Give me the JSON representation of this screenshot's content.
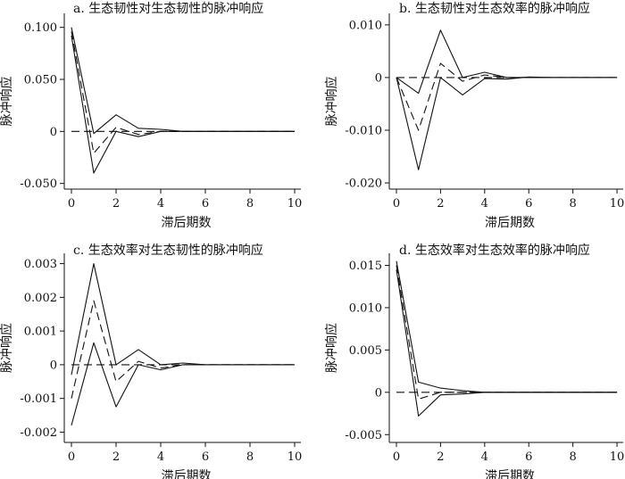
{
  "chart_data": [
    {
      "type": "line",
      "title": "a. 生态韧性对生态韧性的脉冲响应",
      "xlabel": "滞后期数",
      "ylabel": "脉冲响应",
      "xlim": [
        0,
        10.2
      ],
      "ylim": [
        -0.052,
        0.11
      ],
      "xticks": [
        0,
        2,
        4,
        6,
        8,
        10
      ],
      "xtick_labels": [
        "0",
        "2",
        "4",
        "6",
        "8",
        "10"
      ],
      "yticks": [
        0.1,
        0.05,
        0,
        -0.05
      ],
      "ytick_labels": [
        "0.100",
        "0.050",
        "0",
        "-0.050"
      ],
      "x": [
        0,
        1,
        2,
        3,
        4,
        5,
        6,
        7,
        8,
        9,
        10
      ],
      "series": [
        {
          "role": "upper",
          "style": "solid",
          "values": [
            0.1,
            -0.002,
            0.016,
            0.003,
            0.002,
            0.0,
            0.0,
            0.0,
            0.0,
            0.0,
            0.0
          ]
        },
        {
          "role": "center",
          "style": "dashed",
          "values": [
            0.096,
            -0.021,
            0.004,
            -0.003,
            0.0,
            0.0,
            0.0,
            0.0,
            0.0,
            0.0,
            0.0
          ]
        },
        {
          "role": "lower",
          "style": "solid",
          "values": [
            0.092,
            -0.04,
            0.0,
            -0.005,
            0.0,
            0.0,
            0.0,
            0.0,
            0.0,
            0.0,
            0.0
          ]
        },
        {
          "role": "zero",
          "style": "dashed",
          "values": [
            0,
            0,
            0,
            0,
            0,
            0,
            0,
            0,
            0,
            0,
            0
          ]
        }
      ]
    },
    {
      "type": "line",
      "title": "b. 生态韧性对生态效率的脉冲响应",
      "xlabel": "滞后期数",
      "ylabel": "脉冲响应",
      "xlim": [
        0,
        10.2
      ],
      "ylim": [
        -0.0205,
        0.0115
      ],
      "xticks": [
        0,
        2,
        4,
        6,
        8,
        10
      ],
      "xtick_labels": [
        "0",
        "2",
        "4",
        "6",
        "8",
        "10"
      ],
      "yticks": [
        0.01,
        0,
        -0.01,
        -0.02
      ],
      "ytick_labels": [
        "0.010",
        "0",
        "-0.010",
        "-0.020"
      ],
      "x": [
        0,
        1,
        2,
        3,
        4,
        5,
        6,
        7,
        8,
        9,
        10
      ],
      "series": [
        {
          "role": "upper",
          "style": "solid",
          "values": [
            0,
            -0.003,
            0.009,
            0.0,
            0.001,
            0.0,
            0.0,
            0.0,
            0.0,
            0.0,
            0.0
          ]
        },
        {
          "role": "center",
          "style": "dashed",
          "values": [
            0,
            -0.01,
            0.0027,
            -0.0007,
            0.0005,
            0.0,
            0.0,
            0.0,
            0.0,
            0.0,
            0.0
          ]
        },
        {
          "role": "lower",
          "style": "solid",
          "values": [
            0,
            -0.0175,
            0.0,
            -0.0033,
            -0.0002,
            -0.0003,
            0.0001,
            0.0,
            0.0,
            0.0,
            0.0
          ]
        },
        {
          "role": "zero",
          "style": "dashed",
          "values": [
            0,
            0,
            0,
            0,
            0,
            0,
            0,
            0,
            0,
            0,
            0
          ]
        }
      ]
    },
    {
      "type": "line",
      "title": "c. 生态效率对生态韧性的脉冲响应",
      "xlabel": "滞后期数",
      "ylabel": "脉冲响应",
      "xlim": [
        0,
        10.2
      ],
      "ylim": [
        -0.0022,
        0.0032
      ],
      "xticks": [
        0,
        2,
        4,
        6,
        8,
        10
      ],
      "xtick_labels": [
        "0",
        "2",
        "4",
        "6",
        "8",
        "10"
      ],
      "yticks": [
        0.003,
        0.002,
        0.001,
        0,
        -0.001,
        -0.002
      ],
      "ytick_labels": [
        "0.003",
        "0.002",
        "0.001",
        "0",
        "-0.001",
        "-0.002"
      ],
      "x": [
        0,
        1,
        2,
        3,
        4,
        5,
        6,
        7,
        8,
        9,
        10
      ],
      "series": [
        {
          "role": "upper",
          "style": "solid",
          "values": [
            -0.0003,
            0.003,
            0.0,
            0.00045,
            0.0,
            5e-05,
            0.0,
            0.0,
            0.0,
            0.0,
            0.0
          ]
        },
        {
          "role": "center",
          "style": "dashed",
          "values": [
            -0.001,
            0.0019,
            -0.0005,
            0.0001,
            -0.0001,
            0.0,
            0.0,
            0.0,
            0.0,
            0.0,
            0.0
          ]
        },
        {
          "role": "lower",
          "style": "solid",
          "values": [
            -0.0018,
            0.00065,
            -0.00125,
            0.0,
            -0.00015,
            0.0,
            0.0,
            0.0,
            0.0,
            0.0,
            0.0
          ]
        },
        {
          "role": "zero",
          "style": "dashed",
          "values": [
            0,
            0,
            0,
            0,
            0,
            0,
            0,
            0,
            0,
            0,
            0
          ]
        }
      ]
    },
    {
      "type": "line",
      "title": "d. 生态效率对生态效率的脉冲响应",
      "xlabel": "滞后期数",
      "ylabel": "脉冲响应",
      "xlim": [
        0,
        10.2
      ],
      "ylim": [
        -0.0055,
        0.016
      ],
      "xticks": [
        0,
        2,
        4,
        6,
        8,
        10
      ],
      "xtick_labels": [
        "0",
        "2",
        "4",
        "6",
        "8",
        "10"
      ],
      "yticks": [
        0.015,
        0.01,
        0.005,
        0,
        -0.005
      ],
      "ytick_labels": [
        "0.015",
        "0.010",
        "0.005",
        "0",
        "-0.005"
      ],
      "x": [
        0,
        1,
        2,
        3,
        4,
        5,
        6,
        7,
        8,
        9,
        10
      ],
      "series": [
        {
          "role": "upper",
          "style": "solid",
          "values": [
            0.0155,
            0.0012,
            0.0005,
            0.0002,
            0.0,
            0.0,
            0.0,
            0.0,
            0.0,
            0.0,
            0.0
          ]
        },
        {
          "role": "center",
          "style": "dashed",
          "values": [
            0.015,
            -0.0008,
            0.0,
            0.0,
            0.0,
            0.0,
            0.0,
            0.0,
            0.0,
            0.0,
            0.0
          ]
        },
        {
          "role": "lower",
          "style": "solid",
          "values": [
            0.0145,
            -0.0028,
            -0.0003,
            -0.0002,
            0.0,
            0.0,
            0.0,
            0.0,
            0.0,
            0.0,
            0.0
          ]
        },
        {
          "role": "zero",
          "style": "dashed",
          "values": [
            0,
            0,
            0,
            0,
            0,
            0,
            0,
            0,
            0,
            0,
            0
          ]
        }
      ]
    }
  ],
  "colors": {
    "line": "#111111",
    "axis": "#111111",
    "background": "#ffffff"
  }
}
